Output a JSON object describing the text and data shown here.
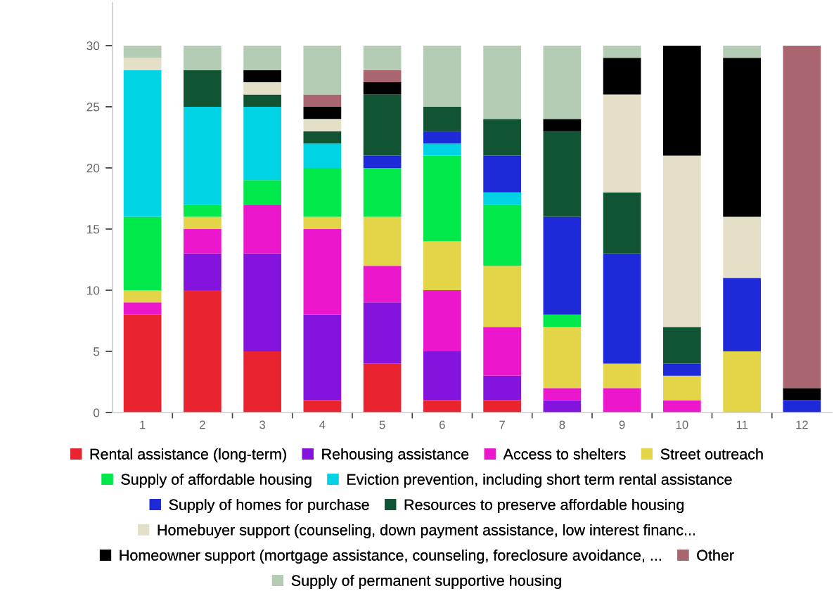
{
  "chart_data": {
    "type": "bar",
    "stacked": true,
    "categories": [
      "1",
      "2",
      "3",
      "4",
      "5",
      "6",
      "7",
      "8",
      "9",
      "10",
      "11",
      "12"
    ],
    "series": [
      {
        "name": "Rental assistance (long-term)",
        "color": "#e9242f",
        "values": [
          8,
          10,
          5,
          1,
          4,
          1,
          1,
          0,
          0,
          0,
          0,
          0
        ]
      },
      {
        "name": "Rehousing assistance",
        "color": "#8414dd",
        "values": [
          0,
          3,
          8,
          7,
          5,
          4,
          2,
          1,
          0,
          0,
          0,
          0
        ]
      },
      {
        "name": "Access to shelters",
        "color": "#ec17cc",
        "values": [
          1,
          2,
          4,
          7,
          3,
          5,
          4,
          1,
          2,
          1,
          0,
          0
        ]
      },
      {
        "name": "Street outreach",
        "color": "#e3d547",
        "values": [
          1,
          1,
          0,
          1,
          4,
          4,
          5,
          5,
          2,
          2,
          5,
          0
        ]
      },
      {
        "name": "Supply of affordable housing",
        "color": "#00e84a",
        "values": [
          6,
          1,
          2,
          4,
          4,
          7,
          5,
          1,
          0,
          0,
          0,
          0
        ]
      },
      {
        "name": "Eviction prevention, including short term rental assistance",
        "color": "#00d3e3",
        "values": [
          12,
          8,
          6,
          2,
          0,
          1,
          1,
          0,
          0,
          0,
          0,
          0
        ]
      },
      {
        "name": "Supply of homes for purchase",
        "color": "#1e29da",
        "values": [
          0,
          0,
          0,
          0,
          1,
          1,
          3,
          8,
          9,
          1,
          6,
          1
        ]
      },
      {
        "name": "Resources to preserve affordable housing",
        "color": "#115433",
        "values": [
          0,
          3,
          1,
          1,
          5,
          2,
          3,
          7,
          5,
          3,
          0,
          0
        ]
      },
      {
        "name": "Homebuyer support (counseling, down payment assistance, low interest financ...",
        "color": "#e4dfc7",
        "values": [
          1,
          0,
          1,
          1,
          0,
          0,
          0,
          0,
          8,
          14,
          5,
          0
        ]
      },
      {
        "name": "Homeowner support (mortgage assistance, counseling, foreclosure avoidance, ...",
        "color": "#000000",
        "values": [
          0,
          0,
          1,
          1,
          1,
          0,
          0,
          1,
          3,
          9,
          13,
          1
        ]
      },
      {
        "name": "Other",
        "color": "#aa6670",
        "values": [
          0,
          0,
          0,
          1,
          1,
          0,
          0,
          0,
          0,
          0,
          0,
          28
        ]
      },
      {
        "name": "Supply of permanent supportive housing",
        "color": "#b4ccb4",
        "values": [
          1,
          2,
          2,
          4,
          2,
          5,
          6,
          6,
          1,
          0,
          1,
          0
        ]
      }
    ],
    "ylim": [
      0,
      33.5
    ],
    "yticks": [
      0,
      5,
      10,
      15,
      20,
      25,
      30
    ],
    "legend": "bottom"
  }
}
